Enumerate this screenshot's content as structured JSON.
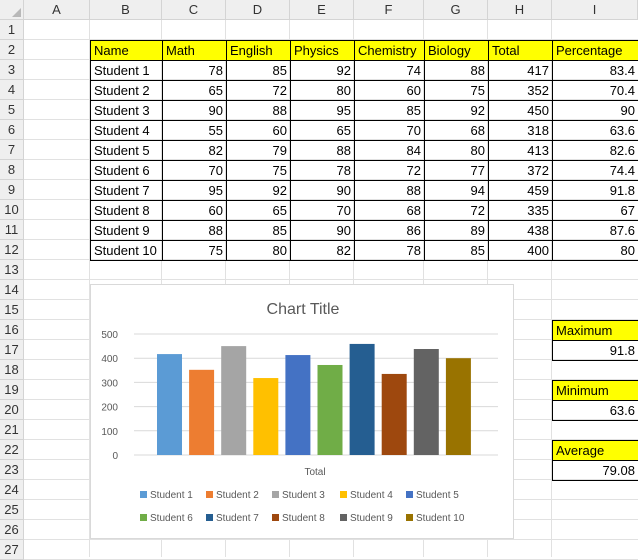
{
  "sheet": {
    "column_headers": [
      "A",
      "B",
      "C",
      "D",
      "E",
      "F",
      "G",
      "H",
      "I"
    ],
    "row_headers": [
      "1",
      "2",
      "3",
      "4",
      "5",
      "6",
      "7",
      "8",
      "9",
      "10",
      "11",
      "12",
      "13",
      "14",
      "15",
      "16",
      "17",
      "18",
      "19",
      "20",
      "21",
      "22",
      "23",
      "24",
      "25",
      "26",
      "27"
    ],
    "table": {
      "headers": [
        "Name",
        "Math",
        "English",
        "Physics",
        "Chemistry",
        "Biology",
        "Total",
        "Percentage"
      ],
      "rows": [
        [
          "Student 1",
          "78",
          "85",
          "92",
          "74",
          "88",
          "417",
          "83.4"
        ],
        [
          "Student 2",
          "65",
          "72",
          "80",
          "60",
          "75",
          "352",
          "70.4"
        ],
        [
          "Student 3",
          "90",
          "88",
          "95",
          "85",
          "92",
          "450",
          "90"
        ],
        [
          "Student 4",
          "55",
          "60",
          "65",
          "70",
          "68",
          "318",
          "63.6"
        ],
        [
          "Student 5",
          "82",
          "79",
          "88",
          "84",
          "80",
          "413",
          "82.6"
        ],
        [
          "Student 6",
          "70",
          "75",
          "78",
          "72",
          "77",
          "372",
          "74.4"
        ],
        [
          "Student 7",
          "95",
          "92",
          "90",
          "88",
          "94",
          "459",
          "91.8"
        ],
        [
          "Student 8",
          "60",
          "65",
          "70",
          "68",
          "72",
          "335",
          "67"
        ],
        [
          "Student 9",
          "88",
          "85",
          "90",
          "86",
          "89",
          "438",
          "87.6"
        ],
        [
          "Student 10",
          "75",
          "80",
          "82",
          "78",
          "85",
          "400",
          "80"
        ]
      ]
    },
    "stats": [
      {
        "label": "Maximum",
        "value": "91.8"
      },
      {
        "label": "Minimum",
        "value": "63.6"
      },
      {
        "label": "Average",
        "value": "79.08"
      }
    ],
    "header_fill": "#ffff00"
  },
  "chart_data": {
    "type": "bar",
    "title": "Chart Title",
    "categories": [
      "Total"
    ],
    "xlabel": "",
    "ylabel": "",
    "ylim": [
      0,
      500
    ],
    "yticks": [
      0,
      100,
      200,
      300,
      400,
      500
    ],
    "grid": true,
    "legend_position": "bottom",
    "series": [
      {
        "name": "Student 1",
        "values": [
          417
        ],
        "color": "#5b9bd5"
      },
      {
        "name": "Student 2",
        "values": [
          352
        ],
        "color": "#ed7d31"
      },
      {
        "name": "Student 3",
        "values": [
          450
        ],
        "color": "#a5a5a5"
      },
      {
        "name": "Student 4",
        "values": [
          318
        ],
        "color": "#ffc000"
      },
      {
        "name": "Student 5",
        "values": [
          413
        ],
        "color": "#4472c4"
      },
      {
        "name": "Student 6",
        "values": [
          372
        ],
        "color": "#70ad47"
      },
      {
        "name": "Student 7",
        "values": [
          459
        ],
        "color": "#255e91"
      },
      {
        "name": "Student 8",
        "values": [
          335
        ],
        "color": "#9e480e"
      },
      {
        "name": "Student 9",
        "values": [
          438
        ],
        "color": "#636363"
      },
      {
        "name": "Student 10",
        "values": [
          400
        ],
        "color": "#997300"
      }
    ]
  }
}
